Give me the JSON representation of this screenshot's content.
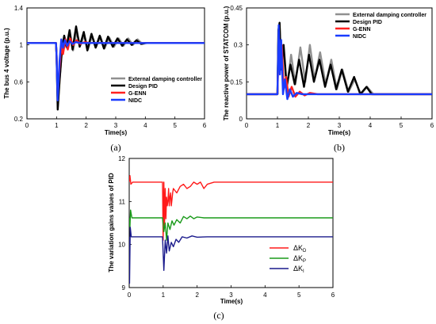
{
  "chart_data": [
    {
      "panel_label": "(a)",
      "type": "line",
      "xlabel": "Time(s)",
      "ylabel": "The bus 4 voltage (p.u.)",
      "xlim": [
        0,
        6
      ],
      "ylim": [
        0.2,
        1.4
      ],
      "xticks": [
        "0",
        "1",
        "2",
        "3",
        "4",
        "5",
        "6"
      ],
      "yticks": [
        "0.2",
        "0.6",
        "1",
        "1.4"
      ],
      "legend_position": "bottom-right",
      "series": [
        {
          "name": "External damping controller",
          "color": "#909090",
          "x": [
            0,
            0.98,
            1.0,
            1.04,
            1.1,
            1.18,
            1.26,
            1.34,
            1.44,
            1.56,
            1.68,
            1.8,
            1.94,
            2.06,
            2.2,
            2.34,
            2.48,
            2.62,
            2.78,
            2.94,
            3.1,
            3.26,
            3.42,
            3.58,
            3.74,
            3.9,
            4.05,
            6
          ],
          "y": [
            1.02,
            1.02,
            0.9,
            0.32,
            0.62,
            0.92,
            1.08,
            0.97,
            1.12,
            0.94,
            1.14,
            0.99,
            1.11,
            0.95,
            1.1,
            0.98,
            1.09,
            0.96,
            1.08,
            0.98,
            1.07,
            0.99,
            1.07,
            1.0,
            1.06,
            1.01,
            1.02,
            1.02
          ]
        },
        {
          "name": "Design PID",
          "color": "#000000",
          "x": [
            0,
            0.98,
            1.0,
            1.04,
            1.1,
            1.18,
            1.26,
            1.34,
            1.44,
            1.54,
            1.66,
            1.78,
            1.92,
            2.04,
            2.18,
            2.32,
            2.46,
            2.6,
            2.74,
            2.9,
            3.06,
            3.22,
            3.38,
            3.54,
            3.7,
            3.86,
            4.0,
            6
          ],
          "y": [
            1.02,
            1.02,
            0.9,
            0.3,
            0.6,
            0.95,
            1.1,
            0.98,
            1.16,
            0.95,
            1.2,
            0.98,
            1.14,
            0.94,
            1.12,
            0.97,
            1.1,
            0.96,
            1.09,
            0.98,
            1.07,
            0.99,
            1.06,
            1.0,
            1.05,
            1.01,
            1.02,
            1.02
          ]
        },
        {
          "name": "G-ENN",
          "color": "#ff2020",
          "x": [
            0,
            0.98,
            1.0,
            1.04,
            1.1,
            1.16,
            1.22,
            1.3,
            1.38,
            1.46,
            1.56,
            1.68,
            1.8,
            1.95,
            2.1,
            2.3,
            6
          ],
          "y": [
            1.02,
            1.02,
            0.9,
            0.45,
            0.75,
            0.98,
            0.9,
            1.06,
            0.95,
            1.07,
            1.0,
            1.05,
            1.01,
            1.03,
            1.02,
            1.02,
            1.02
          ]
        },
        {
          "name": "NIDC",
          "color": "#1a3cff",
          "x": [
            0,
            0.98,
            1.0,
            1.04,
            1.1,
            1.16,
            1.22,
            1.28,
            1.36,
            1.44,
            1.54,
            1.65,
            1.8,
            6
          ],
          "y": [
            1.02,
            1.02,
            0.9,
            0.4,
            0.82,
            1.06,
            0.97,
            1.05,
            0.99,
            1.04,
            1.01,
            1.03,
            1.02,
            1.02
          ]
        }
      ]
    },
    {
      "panel_label": "(b)",
      "type": "line",
      "xlabel": "Time(s)",
      "ylabel": "The reactive power of STATCOM (p.u.)",
      "xlim": [
        0,
        6
      ],
      "ylim": [
        0,
        0.45
      ],
      "xticks": [
        "0",
        "1",
        "2",
        "3",
        "4",
        "5",
        "6"
      ],
      "yticks": [
        "0",
        "0.15",
        "0.3",
        "0.45"
      ],
      "legend_position": "top-right",
      "series": [
        {
          "name": "External damping controller",
          "color": "#909090",
          "x": [
            0,
            1.0,
            1.03,
            1.07,
            1.12,
            1.2,
            1.3,
            1.44,
            1.58,
            1.74,
            1.9,
            2.05,
            2.2,
            2.38,
            2.56,
            2.74,
            2.92,
            3.1,
            3.3,
            3.5,
            3.7,
            3.9,
            4.1,
            6
          ],
          "y": [
            0.1,
            0.1,
            0.34,
            0.38,
            0.22,
            0.28,
            0.12,
            0.26,
            0.14,
            0.29,
            0.15,
            0.3,
            0.16,
            0.27,
            0.14,
            0.24,
            0.12,
            0.2,
            0.11,
            0.16,
            0.1,
            0.13,
            0.1,
            0.1
          ]
        },
        {
          "name": "Design PID",
          "color": "#000000",
          "x": [
            0,
            1.0,
            1.03,
            1.07,
            1.12,
            1.2,
            1.3,
            1.42,
            1.56,
            1.7,
            1.86,
            2.02,
            2.18,
            2.36,
            2.54,
            2.72,
            2.9,
            3.08,
            3.28,
            3.48,
            3.68,
            3.88,
            4.05,
            6
          ],
          "y": [
            0.1,
            0.1,
            0.36,
            0.39,
            0.2,
            0.3,
            0.13,
            0.22,
            0.14,
            0.24,
            0.13,
            0.26,
            0.15,
            0.24,
            0.13,
            0.22,
            0.12,
            0.2,
            0.11,
            0.17,
            0.1,
            0.13,
            0.1,
            0.1
          ]
        },
        {
          "name": "G-ENN",
          "color": "#ff2020",
          "x": [
            0,
            1.0,
            1.04,
            1.08,
            1.14,
            1.2,
            1.28,
            1.36,
            1.46,
            1.58,
            1.72,
            1.88,
            2.05,
            2.3,
            6
          ],
          "y": [
            0.1,
            0.1,
            0.33,
            0.2,
            0.3,
            0.12,
            0.17,
            0.09,
            0.13,
            0.09,
            0.11,
            0.095,
            0.105,
            0.1,
            0.1
          ]
        },
        {
          "name": "NIDC",
          "color": "#1a3cff",
          "x": [
            0,
            1.0,
            1.04,
            1.08,
            1.12,
            1.18,
            1.24,
            1.32,
            1.4,
            1.5,
            1.62,
            1.8,
            6
          ],
          "y": [
            0.1,
            0.1,
            0.38,
            0.18,
            0.32,
            0.1,
            0.16,
            0.08,
            0.12,
            0.09,
            0.105,
            0.1,
            0.1
          ]
        }
      ]
    },
    {
      "panel_label": "(c)",
      "type": "line",
      "xlabel": "Time(s)",
      "ylabel": "The variation gains values of PID",
      "xlim": [
        0,
        6
      ],
      "ylim": [
        9,
        12
      ],
      "xticks": [
        "0",
        "1",
        "2",
        "3",
        "4",
        "5",
        "6"
      ],
      "yticks": [
        "9",
        "10",
        "11",
        "12"
      ],
      "legend_position": "bottom-right",
      "series": [
        {
          "name": "ΔK",
          "subscript": "D",
          "color": "#ff1a1a",
          "x": [
            0,
            0.02,
            0.05,
            0.1,
            0.98,
            1.0,
            1.02,
            1.04,
            1.06,
            1.08,
            1.1,
            1.12,
            1.14,
            1.16,
            1.18,
            1.2,
            1.22,
            1.24,
            1.26,
            1.28,
            1.3,
            1.4,
            1.5,
            1.6,
            1.7,
            1.8,
            1.9,
            2.0,
            2.1,
            2.2,
            2.3,
            2.5,
            2.8,
            3.2,
            6
          ],
          "y": [
            11.45,
            11.6,
            11.4,
            11.45,
            11.45,
            10.1,
            11.45,
            10.4,
            11.3,
            10.6,
            11.1,
            10.9,
            11.0,
            11.3,
            10.9,
            11.1,
            11.2,
            10.9,
            11.05,
            11.2,
            11.3,
            11.2,
            11.35,
            11.4,
            11.3,
            11.35,
            11.45,
            11.4,
            11.45,
            11.3,
            11.4,
            11.45,
            11.45,
            11.45,
            11.45
          ]
        },
        {
          "name": "ΔK",
          "subscript": "P",
          "color": "#1a9a1a",
          "x": [
            0,
            0.02,
            0.04,
            0.08,
            0.98,
            1.02,
            1.06,
            1.1,
            1.14,
            1.2,
            1.26,
            1.32,
            1.4,
            1.5,
            1.6,
            1.7,
            1.8,
            1.9,
            2.0,
            2.2,
            2.5,
            6
          ],
          "y": [
            10.62,
            10.4,
            10.8,
            10.62,
            10.62,
            10.3,
            10.5,
            10.1,
            10.5,
            10.35,
            10.55,
            10.45,
            10.58,
            10.5,
            10.65,
            10.6,
            10.66,
            10.6,
            10.64,
            10.62,
            10.62,
            10.62
          ]
        },
        {
          "name": "ΔK",
          "subscript": "I",
          "color": "#1a1a8c",
          "x": [
            0,
            0.01,
            0.03,
            0.06,
            0.98,
            1.02,
            1.06,
            1.1,
            1.14,
            1.18,
            1.24,
            1.3,
            1.38,
            1.46,
            1.56,
            1.7,
            1.85,
            2.0,
            2.3,
            6
          ],
          "y": [
            10.18,
            9.1,
            10.4,
            10.18,
            10.18,
            9.4,
            10.1,
            9.8,
            10.2,
            9.85,
            10.05,
            9.95,
            10.12,
            10.05,
            10.18,
            10.15,
            10.2,
            10.17,
            10.18,
            10.18
          ]
        }
      ]
    }
  ]
}
